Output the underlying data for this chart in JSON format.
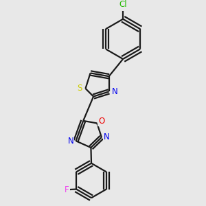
{
  "background_color": "#e8e8e8",
  "bond_color": "#1a1a1a",
  "atom_colors": {
    "S": "#cccc00",
    "N": "#0000ee",
    "O": "#ee0000",
    "Cl": "#22bb00",
    "F": "#ee44ee",
    "C": "#1a1a1a"
  },
  "figsize": [
    3.0,
    3.0
  ],
  "dpi": 100
}
